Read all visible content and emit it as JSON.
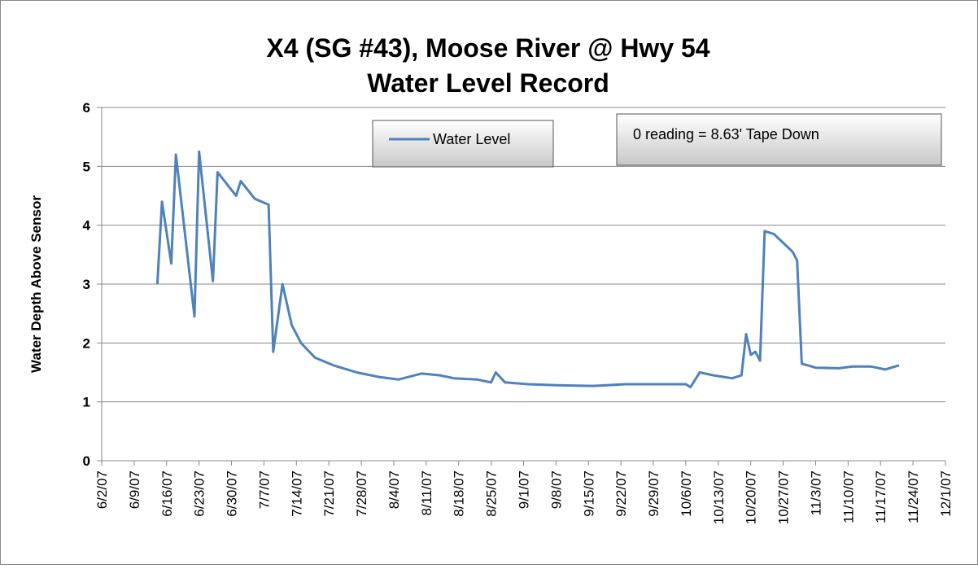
{
  "chart_data": {
    "type": "line",
    "title": [
      "X4 (SG #43), Moose River @ Hwy 54",
      "Water Level Record"
    ],
    "y_label": "Water Depth Above Sensor",
    "annotation": "0 reading = 8.63' Tape Down",
    "legend": "top-center",
    "grid": true,
    "ylim": [
      0,
      6
    ],
    "yticks": [
      0,
      1,
      2,
      3,
      4,
      5,
      6
    ],
    "xlim": [
      "2007-06-02",
      "2007-12-01"
    ],
    "xticks": [
      {
        "value": "2007-06-02",
        "label": "6/2/07"
      },
      {
        "value": "2007-06-09",
        "label": "6/9/07"
      },
      {
        "value": "2007-06-16",
        "label": "6/16/07"
      },
      {
        "value": "2007-06-23",
        "label": "6/23/07"
      },
      {
        "value": "2007-06-30",
        "label": "6/30/07"
      },
      {
        "value": "2007-07-07",
        "label": "7/7/07"
      },
      {
        "value": "2007-07-14",
        "label": "7/14/07"
      },
      {
        "value": "2007-07-21",
        "label": "7/21/07"
      },
      {
        "value": "2007-07-28",
        "label": "7/28/07"
      },
      {
        "value": "2007-08-04",
        "label": "8/4/07"
      },
      {
        "value": "2007-08-11",
        "label": "8/11/07"
      },
      {
        "value": "2007-08-18",
        "label": "8/18/07"
      },
      {
        "value": "2007-08-25",
        "label": "8/25/07"
      },
      {
        "value": "2007-09-01",
        "label": "9/1/07"
      },
      {
        "value": "2007-09-08",
        "label": "9/8/07"
      },
      {
        "value": "2007-09-15",
        "label": "9/15/07"
      },
      {
        "value": "2007-09-22",
        "label": "9/22/07"
      },
      {
        "value": "2007-09-29",
        "label": "9/29/07"
      },
      {
        "value": "2007-10-06",
        "label": "10/6/07"
      },
      {
        "value": "2007-10-13",
        "label": "10/13/07"
      },
      {
        "value": "2007-10-20",
        "label": "10/20/07"
      },
      {
        "value": "2007-10-27",
        "label": "10/27/07"
      },
      {
        "value": "2007-11-03",
        "label": "11/3/07"
      },
      {
        "value": "2007-11-10",
        "label": "11/10/07"
      },
      {
        "value": "2007-11-17",
        "label": "11/17/07"
      },
      {
        "value": "2007-11-24",
        "label": "11/24/07"
      },
      {
        "value": "2007-12-01",
        "label": "12/1/07"
      }
    ],
    "x": [
      "2007-06-14",
      "2007-06-15",
      "2007-06-17",
      "2007-06-18",
      "2007-06-22",
      "2007-06-23",
      "2007-06-26",
      "2007-06-27",
      "2007-06-30",
      "2007-07-01",
      "2007-07-02",
      "2007-07-05",
      "2007-07-08",
      "2007-07-09",
      "2007-07-11",
      "2007-07-13",
      "2007-07-15",
      "2007-07-18",
      "2007-07-22",
      "2007-07-27",
      "2007-08-01",
      "2007-08-05",
      "2007-08-10",
      "2007-08-14",
      "2007-08-17",
      "2007-08-22",
      "2007-08-25",
      "2007-08-26",
      "2007-08-28",
      "2007-09-02",
      "2007-09-09",
      "2007-09-16",
      "2007-09-23",
      "2007-09-30",
      "2007-10-06",
      "2007-10-07",
      "2007-10-09",
      "2007-10-12",
      "2007-10-16",
      "2007-10-18",
      "2007-10-19",
      "2007-10-20",
      "2007-10-21",
      "2007-10-22",
      "2007-10-23",
      "2007-10-25",
      "2007-10-29",
      "2007-10-30",
      "2007-10-31",
      "2007-11-03",
      "2007-11-08",
      "2007-11-11",
      "2007-11-15",
      "2007-11-18",
      "2007-11-21"
    ],
    "series": [
      {
        "name": "Water Level",
        "color": "#4f81bd",
        "values": [
          3.0,
          4.4,
          3.35,
          5.2,
          2.45,
          5.25,
          3.05,
          4.9,
          4.6,
          4.5,
          4.75,
          4.45,
          4.35,
          1.85,
          3.0,
          2.3,
          2.0,
          1.75,
          1.62,
          1.5,
          1.42,
          1.38,
          1.48,
          1.45,
          1.4,
          1.38,
          1.33,
          1.5,
          1.33,
          1.3,
          1.28,
          1.27,
          1.3,
          1.3,
          1.3,
          1.25,
          1.5,
          1.45,
          1.4,
          1.45,
          2.15,
          1.8,
          1.85,
          1.7,
          3.9,
          3.85,
          3.55,
          3.4,
          1.65,
          1.58,
          1.57,
          1.6,
          1.6,
          1.55,
          1.62
        ]
      }
    ]
  }
}
